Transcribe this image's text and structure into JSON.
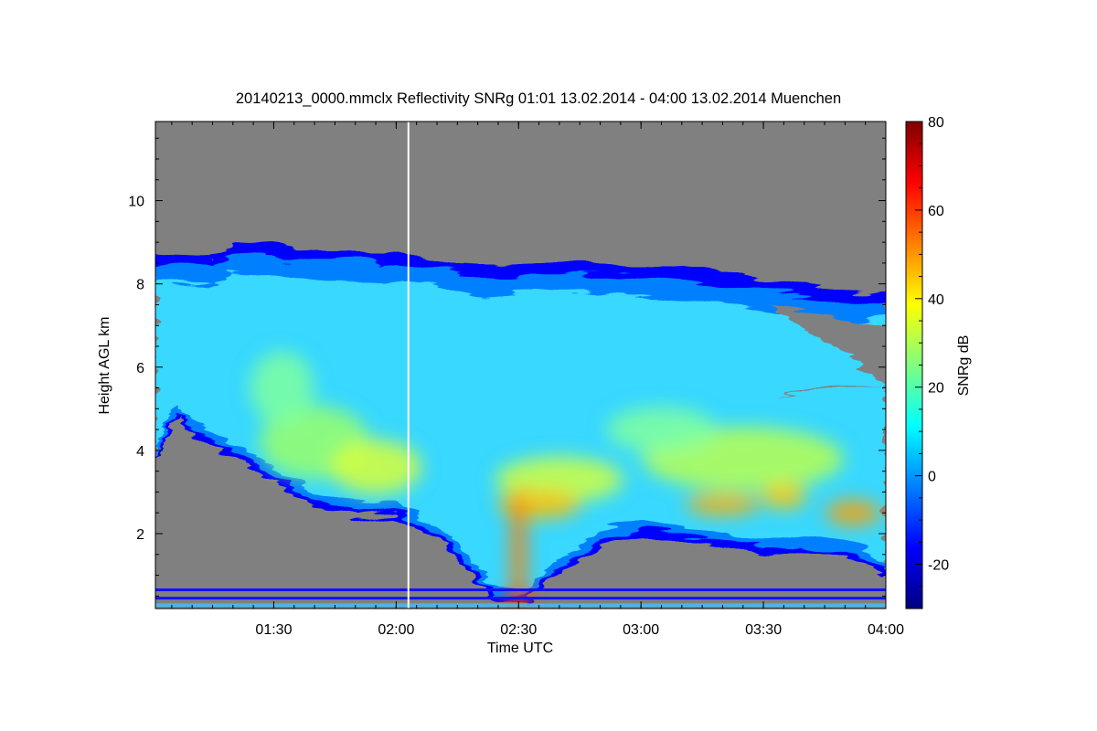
{
  "chart_data": {
    "type": "heatmap",
    "title": "20140213_0000.mmclx Reflectivity SNRg   01:01 13.02.2014 - 04:00 13.02.2014 Muenchen",
    "xlabel": "Time UTC",
    "ylabel": "Height AGL km",
    "colorbar_label": "SNRg dB",
    "xlim": [
      "01:01",
      "04:00"
    ],
    "ylim_km": [
      0.2,
      11.9
    ],
    "zlim_db": [
      -30,
      80
    ],
    "x_ticks": [
      {
        "label": "01:30",
        "minutes": 90
      },
      {
        "label": "02:00",
        "minutes": 120
      },
      {
        "label": "02:30",
        "minutes": 150
      },
      {
        "label": "03:00",
        "minutes": 180
      },
      {
        "label": "03:30",
        "minutes": 210
      },
      {
        "label": "04:00",
        "minutes": 240
      }
    ],
    "y_ticks": [
      {
        "label": "2",
        "value": 2
      },
      {
        "label": "4",
        "value": 4
      },
      {
        "label": "6",
        "value": 6
      },
      {
        "label": "8",
        "value": 8
      },
      {
        "label": "10",
        "value": 10
      }
    ],
    "colorbar_ticks": [
      {
        "label": "-20",
        "value": -20
      },
      {
        "label": "0",
        "value": 0
      },
      {
        "label": "20",
        "value": 20
      },
      {
        "label": "40",
        "value": 40
      },
      {
        "label": "60",
        "value": 60
      },
      {
        "label": "80",
        "value": 80
      }
    ],
    "colormap": [
      "#00007f",
      "#0000ff",
      "#007fff",
      "#00ffff",
      "#7fff7f",
      "#ffff00",
      "#ff7f00",
      "#ff0000",
      "#7f0000"
    ],
    "no_signal_color": "#808080",
    "marker_line_time": "02:03",
    "cloud_top_km": [
      [
        61,
        8.7
      ],
      [
        75,
        8.65
      ],
      [
        80,
        8.95
      ],
      [
        90,
        8.9
      ],
      [
        95,
        8.8
      ],
      [
        100,
        8.85
      ],
      [
        110,
        8.85
      ],
      [
        117,
        8.7
      ],
      [
        121,
        8.8
      ],
      [
        130,
        8.6
      ],
      [
        135,
        8.5
      ],
      [
        145,
        8.45
      ],
      [
        155,
        8.5
      ],
      [
        165,
        8.5
      ],
      [
        175,
        8.45
      ],
      [
        185,
        8.4
      ],
      [
        195,
        8.3
      ],
      [
        205,
        8.15
      ],
      [
        215,
        8.0
      ],
      [
        225,
        7.85
      ],
      [
        232,
        7.8
      ],
      [
        240,
        7.9
      ]
    ],
    "cloud_base_km": [
      [
        61,
        3.7
      ],
      [
        64,
        4.4
      ],
      [
        67,
        4.8
      ],
      [
        70,
        4.35
      ],
      [
        75,
        4.1
      ],
      [
        80,
        3.8
      ],
      [
        90,
        3.25
      ],
      [
        100,
        2.6
      ],
      [
        110,
        2.35
      ],
      [
        120,
        2.45
      ],
      [
        130,
        1.9
      ],
      [
        140,
        0.9
      ],
      [
        145,
        0.3
      ],
      [
        152,
        0.3
      ],
      [
        158,
        1.0
      ],
      [
        170,
        1.7
      ],
      [
        180,
        2.0
      ],
      [
        190,
        1.8
      ],
      [
        200,
        1.65
      ],
      [
        210,
        1.5
      ],
      [
        220,
        1.6
      ],
      [
        230,
        1.45
      ],
      [
        240,
        0.9
      ]
    ],
    "clear_gap_km": {
      "top": [
        [
          212,
          7.5
        ],
        [
          225,
          7.3
        ],
        [
          240,
          7.0
        ]
      ],
      "bottom": [
        [
          212,
          5.3
        ],
        [
          225,
          5.55
        ],
        [
          240,
          5.6
        ]
      ]
    },
    "ground_bands_km": [
      0.45,
      0.65
    ]
  }
}
